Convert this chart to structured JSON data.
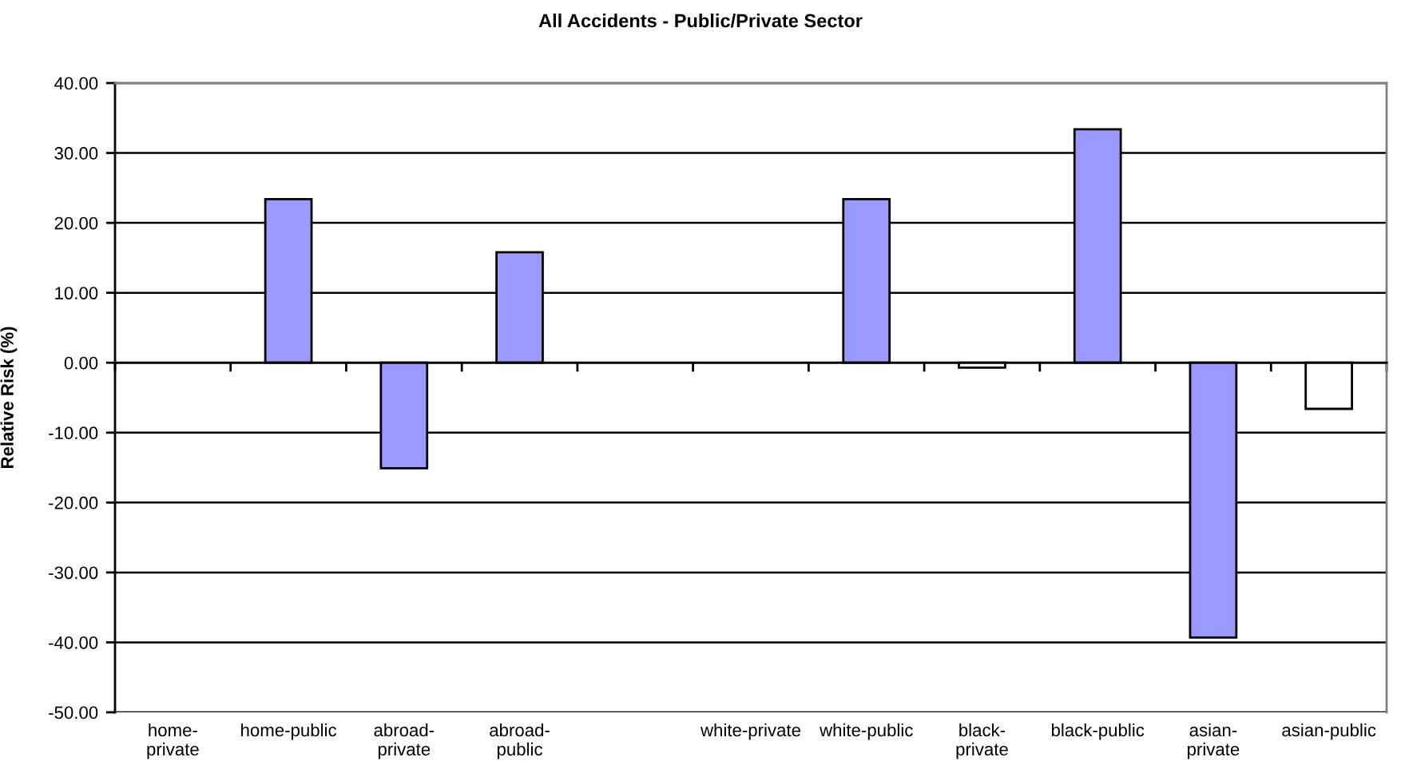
{
  "chart_data": {
    "type": "bar",
    "title": "All Accidents - Public/Private Sector",
    "ylabel": "Relative Risk (%)",
    "categories": [
      "home-private",
      "home-public",
      "abroad-private",
      "abroad-public",
      null,
      "white-private",
      "white-public",
      "black-private",
      "black-public",
      "asian-private",
      "asian-public"
    ],
    "values": [
      null,
      23.4,
      -15.1,
      15.8,
      null,
      null,
      23.4,
      -0.7,
      33.4,
      -39.3,
      -6.6
    ],
    "colors": [
      null,
      "#9999ff",
      "#9999ff",
      "#9999ff",
      null,
      null,
      "#9999ff",
      "#ffffff",
      "#9999ff",
      "#9999ff",
      "#ffffff"
    ],
    "ylim": [
      -50,
      40
    ],
    "yticks": [
      {
        "value": 40,
        "label": "40.00"
      },
      {
        "value": 30,
        "label": "30.00"
      },
      {
        "value": 20,
        "label": "20.00"
      },
      {
        "value": 10,
        "label": "10.00"
      },
      {
        "value": 0,
        "label": "0.00"
      },
      {
        "value": -10,
        "label": "-10.00"
      },
      {
        "value": -20,
        "label": "-20.00"
      },
      {
        "value": -30,
        "label": "-30.00"
      },
      {
        "value": -40,
        "label": "-40.00"
      },
      {
        "value": -50,
        "label": "-50.00"
      }
    ],
    "grid": "y"
  }
}
